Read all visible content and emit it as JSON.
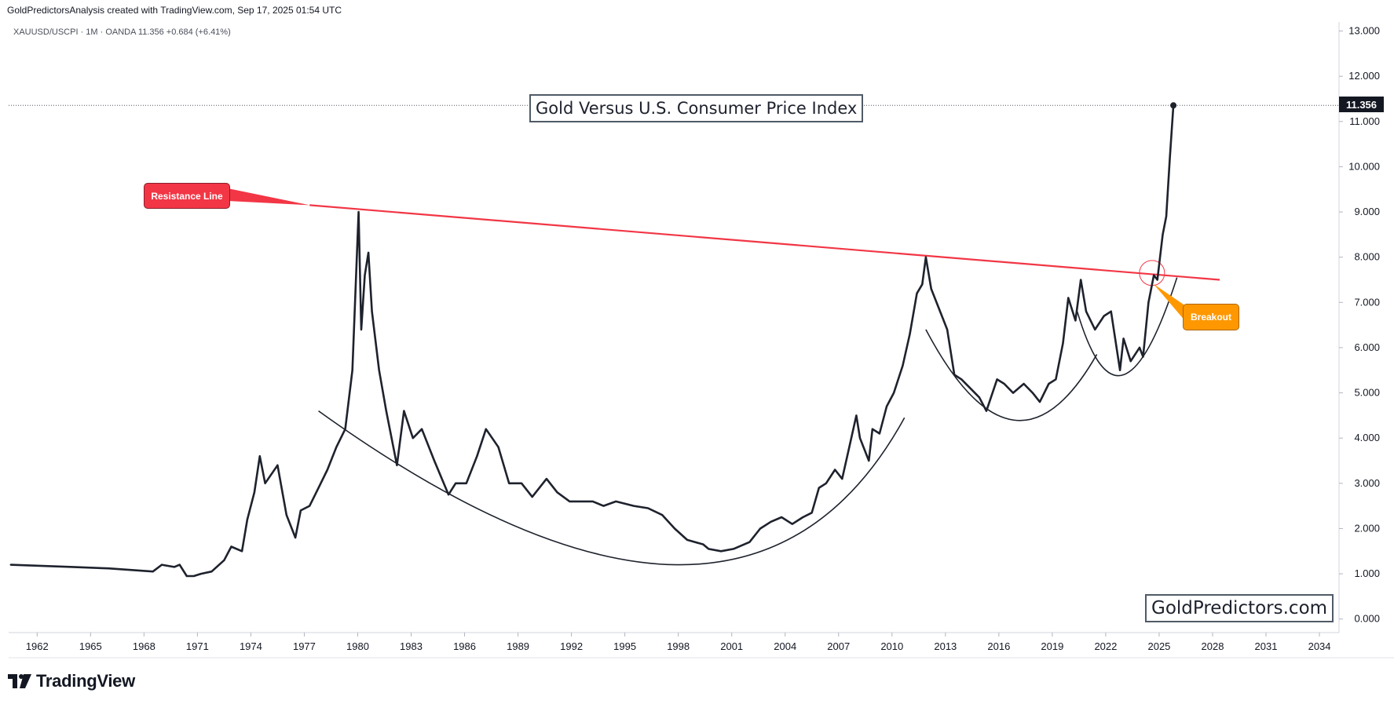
{
  "header": {
    "attribution": "GoldPredictorsAnalysis created with TradingView.com, Sep 17, 2025 01:54 UTC",
    "symbol_line": "XAUUSD/USCPI · 1M · OANDA  11.356  +0.684 (+6.41%)"
  },
  "footer": {
    "logo_text": "TradingView"
  },
  "colors": {
    "series": "#1e222d",
    "resistance": "#f23645",
    "breakout": "#ff9800",
    "background": "#ffffff"
  },
  "chart_data": {
    "type": "line",
    "title": "Gold Versus U.S. Consumer Price Index",
    "watermark": "GoldPredictors.com",
    "last_value": "11.356",
    "y_ticks": [
      "0.000",
      "1.000",
      "2.000",
      "3.000",
      "4.000",
      "5.000",
      "6.000",
      "7.000",
      "8.000",
      "9.000",
      "10.000",
      "11.000",
      "12.000",
      "13.000"
    ],
    "x_ticks": [
      "1962",
      "1965",
      "1968",
      "1971",
      "1974",
      "1977",
      "1980",
      "1983",
      "1986",
      "1989",
      "1992",
      "1995",
      "1998",
      "2001",
      "2004",
      "2007",
      "2010",
      "2013",
      "2016",
      "2019",
      "2022",
      "2025",
      "2028",
      "2031",
      "2034"
    ],
    "ylim": [
      -0.3,
      13.2
    ],
    "xlim": [
      1960.4,
      2035.1
    ],
    "series": [
      {
        "name": "XAUUSD/USCPI",
        "x": [
          1960.5,
          1964,
          1966,
          1968.5,
          1969,
          1969.7,
          1970,
          1970.4,
          1970.8,
          1971.2,
          1971.8,
          1972.5,
          1972.9,
          1973.5,
          1973.8,
          1974.2,
          1974.5,
          1974.8,
          1975.5,
          1976,
          1976.5,
          1976.8,
          1977.3,
          1977.8,
          1978.3,
          1978.8,
          1979.3,
          1979.7,
          1979.9,
          1980.05,
          1980.2,
          1980.4,
          1980.6,
          1980.8,
          1981.2,
          1981.6,
          1982.2,
          1982.6,
          1983.1,
          1983.6,
          1984.3,
          1985.1,
          1985.5,
          1986.1,
          1986.7,
          1987.2,
          1987.9,
          1988.5,
          1989.2,
          1989.8,
          1990.6,
          1991.2,
          1991.9,
          1993.2,
          1993.8,
          1994.5,
          1995.5,
          1996.3,
          1997.1,
          1997.8,
          1998.5,
          1999.4,
          1999.7,
          2000.4,
          2001.1,
          2002.0,
          2002.6,
          2003.2,
          2003.8,
          2004.4,
          2005.0,
          2005.5,
          2005.9,
          2006.3,
          2006.8,
          2007.2,
          2007.6,
          2008.0,
          2008.2,
          2008.7,
          2008.9,
          2009.3,
          2009.7,
          2010.1,
          2010.6,
          2011.0,
          2011.4,
          2011.7,
          2011.9,
          2012.2,
          2012.6,
          2013.1,
          2013.5,
          2013.9,
          2014.4,
          2014.9,
          2015.3,
          2015.9,
          2016.3,
          2016.8,
          2017.4,
          2017.9,
          2018.3,
          2018.8,
          2019.2,
          2019.6,
          2019.9,
          2020.3,
          2020.6,
          2020.9,
          2021.4,
          2021.9,
          2022.3,
          2022.8,
          2023.0,
          2023.4,
          2023.9,
          2024.1,
          2024.4,
          2024.7,
          2024.9,
          2025.2,
          2025.4,
          2025.6,
          2025.8
        ],
        "values": [
          1.2,
          1.15,
          1.12,
          1.05,
          1.2,
          1.15,
          1.2,
          0.95,
          0.95,
          1.0,
          1.05,
          1.3,
          1.6,
          1.5,
          2.2,
          2.8,
          3.6,
          3.0,
          3.4,
          2.3,
          1.8,
          2.4,
          2.5,
          2.9,
          3.3,
          3.8,
          4.2,
          5.5,
          7.5,
          9.0,
          6.4,
          7.6,
          8.1,
          6.8,
          5.5,
          4.6,
          3.4,
          4.6,
          4.0,
          4.2,
          3.5,
          2.75,
          3.0,
          3.0,
          3.6,
          4.2,
          3.8,
          3.0,
          3.0,
          2.7,
          3.1,
          2.8,
          2.6,
          2.6,
          2.5,
          2.6,
          2.5,
          2.45,
          2.3,
          2.0,
          1.75,
          1.65,
          1.55,
          1.5,
          1.55,
          1.7,
          2.0,
          2.15,
          2.25,
          2.1,
          2.25,
          2.35,
          2.9,
          3.0,
          3.3,
          3.1,
          3.8,
          4.5,
          4.0,
          3.5,
          4.2,
          4.1,
          4.7,
          5.0,
          5.6,
          6.3,
          7.2,
          7.4,
          8.0,
          7.3,
          6.9,
          6.4,
          5.4,
          5.3,
          5.1,
          4.9,
          4.6,
          5.3,
          5.2,
          5.0,
          5.2,
          5.0,
          4.8,
          5.2,
          5.3,
          6.1,
          7.1,
          6.6,
          7.5,
          6.8,
          6.4,
          6.7,
          6.8,
          5.5,
          6.2,
          5.7,
          6.0,
          5.8,
          7.0,
          7.6,
          7.5,
          8.5,
          8.9,
          10.2,
          11.356
        ]
      }
    ],
    "overlays": {
      "resistance_line": {
        "label": "Resistance Line",
        "x": [
          1977.3,
          2028.4
        ],
        "y": [
          9.15,
          7.5
        ]
      },
      "arc_large": {
        "x": [
          1977.8,
          1997.9,
          2010.7
        ],
        "y": [
          4.6,
          1.2,
          4.45
        ]
      },
      "arc_middle": {
        "x": [
          2011.9,
          2016.8,
          2021.5
        ],
        "y": [
          6.4,
          4.4,
          5.85
        ]
      },
      "arc_right": {
        "x": [
          2020.4,
          2023.0,
          2026.0
        ],
        "y": [
          6.8,
          5.4,
          7.55
        ]
      },
      "breakout": {
        "label": "Breakout",
        "x": 2024.6,
        "y": 7.65
      }
    }
  }
}
